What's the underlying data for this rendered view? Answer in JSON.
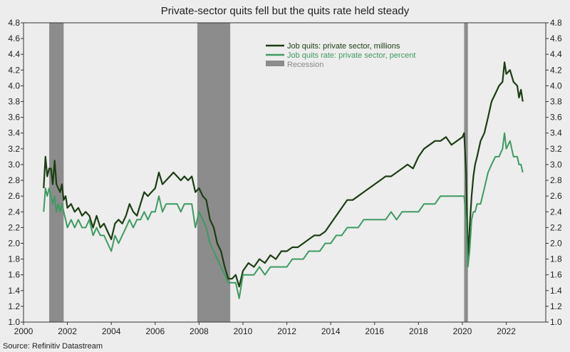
{
  "chart_data": {
    "type": "line",
    "title": "Private-sector quits fell but the quits rate held steady",
    "source": "Source: Refinitiv Datastream",
    "xlim": [
      2000,
      2023.8
    ],
    "ylim": [
      1.0,
      4.8
    ],
    "y_ticks": [
      1.0,
      1.2,
      1.4,
      1.6,
      1.8,
      2.0,
      2.2,
      2.4,
      2.6,
      2.8,
      3.0,
      3.2,
      3.4,
      3.6,
      3.8,
      4.0,
      4.2,
      4.4,
      4.6,
      4.8
    ],
    "y_tick_labels": [
      "1.0",
      "1.2",
      "1.4",
      "1.6",
      "1.8",
      "2.0",
      "2.2",
      "2.4",
      "2.6",
      "2.8",
      "3.0",
      "3.2",
      "3.4",
      "3.6",
      "3.8",
      "4.0",
      "4.2",
      "4.4",
      "4.6",
      "4.8"
    ],
    "x_ticks": [
      2000,
      2002,
      2004,
      2006,
      2008,
      2010,
      2012,
      2014,
      2016,
      2018,
      2020,
      2022
    ],
    "x_tick_labels": [
      "2000",
      "2002",
      "2004",
      "2006",
      "2008",
      "2010",
      "2012",
      "2014",
      "2016",
      "2018",
      "2020",
      "2022"
    ],
    "grid": false,
    "legend_position": "top-right",
    "recessions": [
      [
        2001.17,
        2001.83
      ],
      [
        2007.92,
        2009.42
      ],
      [
        2020.08,
        2020.25
      ]
    ],
    "recession_color": "#8c8c8c",
    "recession_label": "Recession",
    "series": [
      {
        "name": "Job quits: private sector, millions",
        "color": "#1c3d13",
        "x": [
          2000.92,
          2001.0,
          2001.08,
          2001.17,
          2001.25,
          2001.33,
          2001.42,
          2001.5,
          2001.58,
          2001.67,
          2001.75,
          2001.83,
          2001.92,
          2002.0,
          2002.17,
          2002.33,
          2002.5,
          2002.67,
          2002.83,
          2003.0,
          2003.17,
          2003.33,
          2003.5,
          2003.67,
          2003.83,
          2004.0,
          2004.17,
          2004.33,
          2004.5,
          2004.67,
          2004.83,
          2005.0,
          2005.17,
          2005.33,
          2005.5,
          2005.67,
          2005.83,
          2006.0,
          2006.17,
          2006.33,
          2006.5,
          2006.67,
          2006.83,
          2007.0,
          2007.17,
          2007.33,
          2007.5,
          2007.67,
          2007.83,
          2008.0,
          2008.17,
          2008.33,
          2008.5,
          2008.67,
          2008.83,
          2009.0,
          2009.17,
          2009.33,
          2009.5,
          2009.67,
          2009.83,
          2010.0,
          2010.25,
          2010.5,
          2010.75,
          2011.0,
          2011.25,
          2011.5,
          2011.75,
          2012.0,
          2012.25,
          2012.5,
          2012.75,
          2013.0,
          2013.25,
          2013.5,
          2013.75,
          2014.0,
          2014.25,
          2014.5,
          2014.75,
          2015.0,
          2015.25,
          2015.5,
          2015.75,
          2016.0,
          2016.25,
          2016.5,
          2016.75,
          2017.0,
          2017.25,
          2017.5,
          2017.75,
          2018.0,
          2018.25,
          2018.5,
          2018.75,
          2019.0,
          2019.25,
          2019.5,
          2019.75,
          2020.0,
          2020.08,
          2020.17,
          2020.25,
          2020.33,
          2020.42,
          2020.5,
          2020.58,
          2020.67,
          2020.83,
          2021.0,
          2021.17,
          2021.33,
          2021.5,
          2021.67,
          2021.83,
          2021.92,
          2022.0,
          2022.17,
          2022.33,
          2022.5,
          2022.58,
          2022.67,
          2022.75
        ],
        "values": [
          2.7,
          3.1,
          2.85,
          2.95,
          2.95,
          2.75,
          3.05,
          2.75,
          2.7,
          2.65,
          2.75,
          2.55,
          2.6,
          2.45,
          2.5,
          2.4,
          2.45,
          2.35,
          2.4,
          2.35,
          2.2,
          2.35,
          2.2,
          2.25,
          2.15,
          2.05,
          2.25,
          2.3,
          2.25,
          2.35,
          2.5,
          2.4,
          2.35,
          2.5,
          2.65,
          2.6,
          2.65,
          2.7,
          2.9,
          2.75,
          2.8,
          2.85,
          2.9,
          2.85,
          2.8,
          2.85,
          2.8,
          2.85,
          2.65,
          2.7,
          2.6,
          2.55,
          2.3,
          2.2,
          2.0,
          1.9,
          1.7,
          1.55,
          1.55,
          1.6,
          1.45,
          1.65,
          1.75,
          1.7,
          1.8,
          1.75,
          1.85,
          1.8,
          1.9,
          1.9,
          1.95,
          1.95,
          2.0,
          2.05,
          2.1,
          2.1,
          2.15,
          2.25,
          2.35,
          2.45,
          2.55,
          2.55,
          2.6,
          2.65,
          2.7,
          2.75,
          2.8,
          2.85,
          2.85,
          2.9,
          2.95,
          3.0,
          2.95,
          3.1,
          3.2,
          3.25,
          3.3,
          3.3,
          3.35,
          3.25,
          3.3,
          3.35,
          3.4,
          2.9,
          1.8,
          2.2,
          2.6,
          2.85,
          3.0,
          3.1,
          3.3,
          3.4,
          3.6,
          3.8,
          3.9,
          4.0,
          4.05,
          4.3,
          4.15,
          4.2,
          4.05,
          4.0,
          3.85,
          3.95,
          3.8
        ]
      },
      {
        "name": "Job quits rate: private sector, percent",
        "color": "#3f9a62",
        "x": [
          2000.92,
          2001.0,
          2001.08,
          2001.17,
          2001.25,
          2001.33,
          2001.42,
          2001.5,
          2001.58,
          2001.67,
          2001.75,
          2001.83,
          2001.92,
          2002.0,
          2002.17,
          2002.33,
          2002.5,
          2002.67,
          2002.83,
          2003.0,
          2003.17,
          2003.33,
          2003.5,
          2003.67,
          2003.83,
          2004.0,
          2004.17,
          2004.33,
          2004.5,
          2004.67,
          2004.83,
          2005.0,
          2005.17,
          2005.33,
          2005.5,
          2005.67,
          2005.83,
          2006.0,
          2006.17,
          2006.33,
          2006.5,
          2006.67,
          2006.83,
          2007.0,
          2007.17,
          2007.33,
          2007.5,
          2007.67,
          2007.83,
          2008.0,
          2008.17,
          2008.33,
          2008.5,
          2008.67,
          2008.83,
          2009.0,
          2009.17,
          2009.33,
          2009.5,
          2009.67,
          2009.83,
          2010.0,
          2010.25,
          2010.5,
          2010.75,
          2011.0,
          2011.25,
          2011.5,
          2011.75,
          2012.0,
          2012.25,
          2012.5,
          2012.75,
          2013.0,
          2013.25,
          2013.5,
          2013.75,
          2014.0,
          2014.25,
          2014.5,
          2014.75,
          2015.0,
          2015.25,
          2015.5,
          2015.75,
          2016.0,
          2016.25,
          2016.5,
          2016.75,
          2017.0,
          2017.25,
          2017.5,
          2017.75,
          2018.0,
          2018.25,
          2018.5,
          2018.75,
          2019.0,
          2019.25,
          2019.5,
          2019.75,
          2020.0,
          2020.08,
          2020.17,
          2020.25,
          2020.33,
          2020.42,
          2020.5,
          2020.58,
          2020.67,
          2020.83,
          2021.0,
          2021.17,
          2021.33,
          2021.5,
          2021.67,
          2021.83,
          2021.92,
          2022.0,
          2022.17,
          2022.33,
          2022.5,
          2022.58,
          2022.67,
          2022.75
        ],
        "values": [
          2.4,
          2.7,
          2.6,
          2.7,
          2.6,
          2.5,
          2.6,
          2.4,
          2.5,
          2.4,
          2.5,
          2.4,
          2.3,
          2.2,
          2.3,
          2.2,
          2.3,
          2.2,
          2.2,
          2.3,
          2.1,
          2.2,
          2.1,
          2.1,
          2.0,
          1.9,
          2.1,
          2.0,
          2.1,
          2.2,
          2.3,
          2.2,
          2.3,
          2.3,
          2.4,
          2.3,
          2.4,
          2.4,
          2.6,
          2.4,
          2.5,
          2.5,
          2.5,
          2.5,
          2.4,
          2.5,
          2.5,
          2.5,
          2.2,
          2.4,
          2.3,
          2.2,
          2.0,
          1.9,
          1.8,
          1.7,
          1.6,
          1.5,
          1.5,
          1.5,
          1.3,
          1.6,
          1.6,
          1.6,
          1.7,
          1.6,
          1.7,
          1.7,
          1.7,
          1.7,
          1.8,
          1.8,
          1.8,
          1.9,
          1.9,
          1.9,
          2.0,
          2.0,
          2.1,
          2.1,
          2.2,
          2.2,
          2.2,
          2.3,
          2.3,
          2.3,
          2.3,
          2.3,
          2.4,
          2.3,
          2.4,
          2.4,
          2.4,
          2.4,
          2.5,
          2.5,
          2.5,
          2.6,
          2.6,
          2.6,
          2.6,
          2.6,
          2.6,
          2.3,
          1.7,
          1.9,
          2.3,
          2.4,
          2.4,
          2.5,
          2.5,
          2.7,
          2.9,
          3.0,
          3.1,
          3.1,
          3.2,
          3.4,
          3.2,
          3.3,
          3.1,
          3.1,
          3.0,
          3.0,
          2.9
        ]
      }
    ]
  }
}
